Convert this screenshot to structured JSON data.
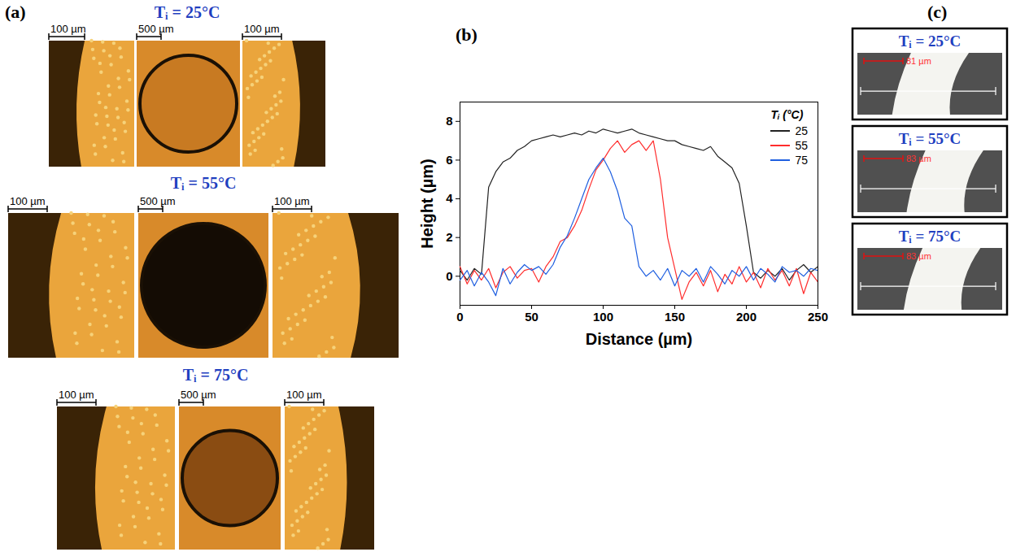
{
  "chart_data": {
    "type": "line",
    "x_label": "Distance (µm)",
    "y_label": "Height (µm)",
    "x": [
      0,
      5,
      10,
      15,
      20,
      25,
      30,
      35,
      40,
      45,
      50,
      55,
      60,
      65,
      70,
      75,
      80,
      85,
      90,
      95,
      100,
      105,
      110,
      115,
      120,
      125,
      130,
      135,
      140,
      145,
      150,
      155,
      160,
      165,
      170,
      175,
      180,
      185,
      190,
      195,
      200,
      205,
      210,
      215,
      220,
      225,
      230,
      235,
      240,
      245,
      250
    ],
    "series": [
      {
        "name": "25",
        "color": "#222222",
        "values": [
          0.3,
          -0.2,
          0.4,
          0.1,
          4.6,
          5.4,
          5.9,
          6.1,
          6.5,
          6.7,
          7.0,
          7.1,
          7.2,
          7.3,
          7.2,
          7.3,
          7.4,
          7.3,
          7.5,
          7.4,
          7.6,
          7.5,
          7.4,
          7.5,
          7.6,
          7.4,
          7.3,
          7.2,
          7.1,
          7.0,
          7.0,
          6.8,
          6.7,
          6.6,
          6.5,
          6.7,
          6.2,
          5.9,
          5.6,
          4.8,
          2.6,
          0.2,
          -0.1,
          0.3,
          0.0,
          0.4,
          -0.2,
          0.3,
          0.6,
          0.2,
          0.5
        ]
      },
      {
        "name": "55",
        "color": "#ff2d2d",
        "values": [
          0.5,
          -0.4,
          0.3,
          -0.2,
          0.4,
          -0.6,
          0.2,
          0.5,
          -0.1,
          0.3,
          0.4,
          -0.3,
          0.5,
          1.0,
          1.8,
          2.0,
          2.6,
          3.4,
          4.5,
          5.5,
          6.0,
          6.6,
          7.0,
          6.4,
          6.8,
          7.0,
          6.5,
          7.0,
          5.0,
          2.0,
          0.4,
          -1.2,
          -0.3,
          0.2,
          -0.5,
          0.3,
          -0.8,
          0.1,
          -0.4,
          0.5,
          -0.3,
          0.2,
          -0.6,
          0.4,
          -0.2,
          0.3,
          -0.5,
          0.4,
          -0.9,
          0.2,
          -0.3
        ]
      },
      {
        "name": "75",
        "color": "#1f5fe0",
        "values": [
          -0.2,
          0.3,
          -0.5,
          0.2,
          -0.3,
          -1.0,
          0.4,
          -0.4,
          0.2,
          0.6,
          0.3,
          0.5,
          0.1,
          0.6,
          1.5,
          2.1,
          3.0,
          4.0,
          5.0,
          5.6,
          6.1,
          5.4,
          4.4,
          3.0,
          2.6,
          0.5,
          0.0,
          0.3,
          -0.2,
          0.4,
          -0.5,
          0.3,
          0.0,
          0.4,
          -0.3,
          0.5,
          0.1,
          -0.4,
          0.3,
          0.0,
          0.5,
          -0.2,
          0.4,
          0.1,
          -0.3,
          0.5,
          0.2,
          0.3,
          0.0,
          0.4,
          0.3
        ]
      }
    ],
    "legend_title": "Tᵢ (°C)",
    "legend": "top-right",
    "grid": false,
    "xlim": [
      0,
      250
    ],
    "xticks": [
      0,
      50,
      100,
      150,
      200,
      250
    ],
    "ylim": [
      -1.5,
      9
    ],
    "yticks": [
      0,
      2,
      4,
      6,
      8
    ]
  },
  "figure": {
    "panel_labels": [
      "(a)",
      "(b)",
      "(c)"
    ],
    "panel_a": {
      "rows": [
        {
          "title": "Tᵢ = 25°C",
          "scale_bars": [
            "100 µm",
            "500 µm",
            "100 µm"
          ]
        },
        {
          "title": "Tᵢ = 55°C",
          "scale_bars": [
            "100 µm",
            "500 µm",
            "100 µm"
          ]
        },
        {
          "title": "Tᵢ = 75°C",
          "scale_bars": [
            "100 µm",
            "500 µm",
            "100 µm"
          ]
        }
      ]
    },
    "panel_c": {
      "images": [
        {
          "title": "Tᵢ = 25°C",
          "scale_label": "81 µm"
        },
        {
          "title": "Tᵢ = 55°C",
          "scale_label": "83 µm"
        },
        {
          "title": "Tᵢ = 75°C",
          "scale_label": "83 µm"
        }
      ]
    }
  }
}
